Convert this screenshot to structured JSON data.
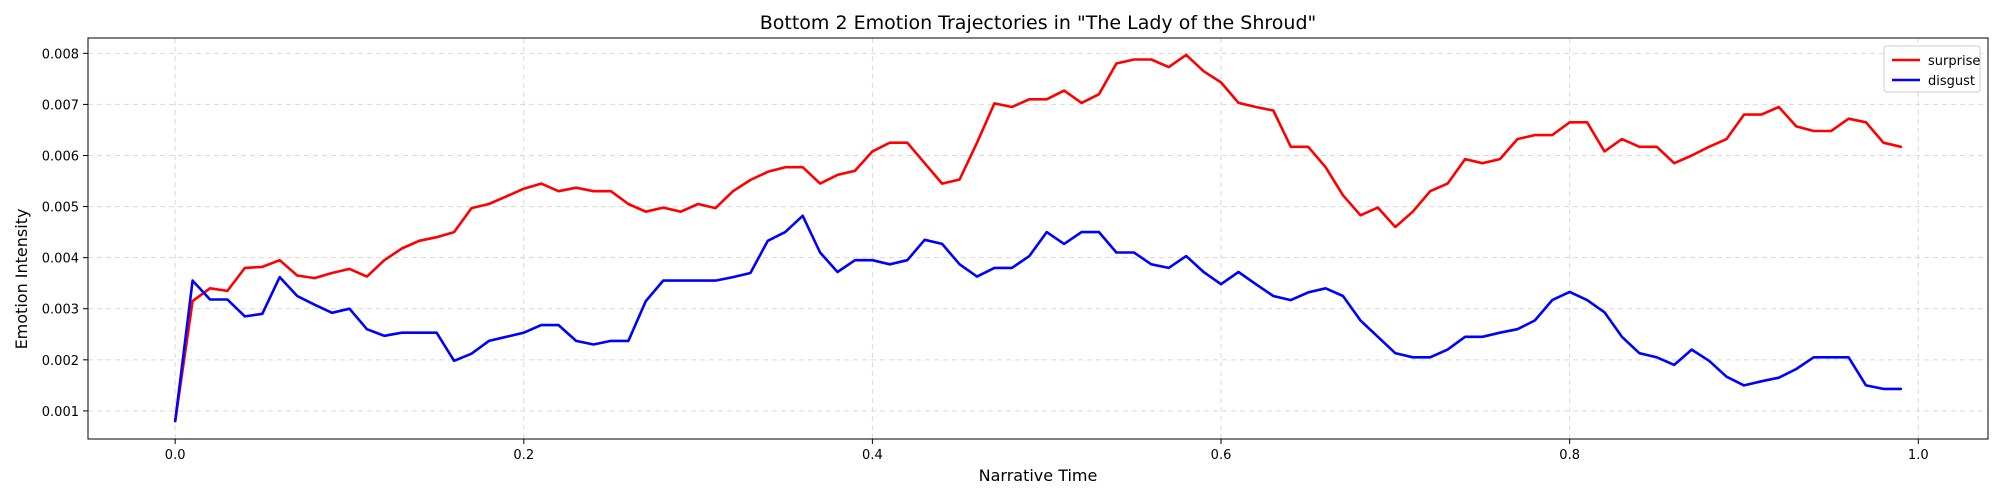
{
  "chart_data": {
    "type": "line",
    "title": "Bottom 2 Emotion Trajectories in \"The Lady of the Shroud\"",
    "xlabel": "Narrative Time",
    "ylabel": "Emotion Intensity",
    "xlim": [
      -0.05,
      1.04
    ],
    "ylim": [
      0.00045,
      0.0083
    ],
    "xticks": [
      0.0,
      0.2,
      0.4,
      0.6,
      0.8,
      1.0
    ],
    "xtick_labels": [
      "0.0",
      "0.2",
      "0.4",
      "0.6",
      "0.8",
      "1.0"
    ],
    "yticks": [
      0.001,
      0.002,
      0.003,
      0.004,
      0.005,
      0.006,
      0.007,
      0.008
    ],
    "ytick_labels": [
      "0.001",
      "0.002",
      "0.003",
      "0.004",
      "0.005",
      "0.006",
      "0.007",
      "0.008"
    ],
    "grid": true,
    "legend_position": "top-right",
    "x": [
      0.0,
      0.01,
      0.02,
      0.03,
      0.04,
      0.05,
      0.06,
      0.07,
      0.08,
      0.09,
      0.1,
      0.11,
      0.12,
      0.13,
      0.14,
      0.15,
      0.16,
      0.17,
      0.18,
      0.19,
      0.2,
      0.21,
      0.22,
      0.23,
      0.24,
      0.25,
      0.26,
      0.27,
      0.28,
      0.29,
      0.3,
      0.31,
      0.32,
      0.33,
      0.34,
      0.35,
      0.36,
      0.37,
      0.38,
      0.39,
      0.4,
      0.41,
      0.42,
      0.43,
      0.44,
      0.45,
      0.46,
      0.47,
      0.48,
      0.49,
      0.5,
      0.51,
      0.52,
      0.53,
      0.54,
      0.55,
      0.56,
      0.57,
      0.58,
      0.59,
      0.6,
      0.61,
      0.62,
      0.63,
      0.64,
      0.65,
      0.66,
      0.67,
      0.68,
      0.69,
      0.7,
      0.71,
      0.72,
      0.73,
      0.74,
      0.75,
      0.76,
      0.77,
      0.78,
      0.79,
      0.8,
      0.81,
      0.82,
      0.83,
      0.84,
      0.85,
      0.86,
      0.87,
      0.88,
      0.89,
      0.9,
      0.91,
      0.92,
      0.93,
      0.94,
      0.95,
      0.96,
      0.97,
      0.98,
      0.99
    ],
    "series": [
      {
        "name": "surprise",
        "color": "#ff0000",
        "values": [
          0.0008,
          0.00315,
          0.0034,
          0.00335,
          0.0038,
          0.00382,
          0.00395,
          0.00365,
          0.0036,
          0.0037,
          0.00378,
          0.00363,
          0.00395,
          0.00418,
          0.00433,
          0.0044,
          0.0045,
          0.00497,
          0.00505,
          0.0052,
          0.00535,
          0.00545,
          0.0053,
          0.00537,
          0.0053,
          0.0053,
          0.00505,
          0.0049,
          0.00498,
          0.0049,
          0.00505,
          0.00497,
          0.0053,
          0.00552,
          0.00568,
          0.00577,
          0.00577,
          0.00545,
          0.00562,
          0.0057,
          0.00608,
          0.00625,
          0.00625,
          0.00585,
          0.00545,
          0.00553,
          0.00625,
          0.00702,
          0.00695,
          0.0071,
          0.0071,
          0.00727,
          0.00703,
          0.0072,
          0.0078,
          0.00788,
          0.00788,
          0.00773,
          0.00797,
          0.00765,
          0.00743,
          0.00703,
          0.00695,
          0.00688,
          0.00617,
          0.00617,
          0.00577,
          0.00522,
          0.00483,
          0.00498,
          0.0046,
          0.0049,
          0.0053,
          0.00545,
          0.00593,
          0.00585,
          0.00593,
          0.00632,
          0.0064,
          0.0064,
          0.00665,
          0.00665,
          0.00608,
          0.00632,
          0.00617,
          0.00617,
          0.00585,
          0.006,
          0.00617,
          0.00632,
          0.0068,
          0.0068,
          0.00695,
          0.00657,
          0.00648,
          0.00648,
          0.00672,
          0.00665,
          0.00625,
          0.00617
        ]
      },
      {
        "name": "disgust",
        "color": "#0000ff",
        "values": [
          0.0008,
          0.00355,
          0.00318,
          0.00318,
          0.00285,
          0.0029,
          0.00362,
          0.00325,
          0.00308,
          0.00292,
          0.003,
          0.0026,
          0.00247,
          0.00253,
          0.00253,
          0.00253,
          0.00198,
          0.00212,
          0.00237,
          0.00245,
          0.00253,
          0.00268,
          0.00268,
          0.00237,
          0.0023,
          0.00237,
          0.00237,
          0.00315,
          0.00355,
          0.00355,
          0.00355,
          0.00355,
          0.00362,
          0.0037,
          0.00433,
          0.0045,
          0.00482,
          0.0041,
          0.00372,
          0.00395,
          0.00395,
          0.00387,
          0.00395,
          0.00435,
          0.00427,
          0.00387,
          0.00363,
          0.0038,
          0.0038,
          0.00403,
          0.0045,
          0.00427,
          0.0045,
          0.0045,
          0.0041,
          0.0041,
          0.00387,
          0.0038,
          0.00403,
          0.00372,
          0.00348,
          0.00372,
          0.00348,
          0.00325,
          0.00317,
          0.00332,
          0.0034,
          0.00325,
          0.00277,
          0.00245,
          0.00213,
          0.00205,
          0.00205,
          0.0022,
          0.00245,
          0.00245,
          0.00253,
          0.0026,
          0.00277,
          0.00317,
          0.00333,
          0.00317,
          0.00293,
          0.00245,
          0.00213,
          0.00205,
          0.0019,
          0.0022,
          0.00198,
          0.00167,
          0.0015,
          0.00158,
          0.00165,
          0.00182,
          0.00205,
          0.00205,
          0.00205,
          0.0015,
          0.00143,
          0.00143
        ]
      }
    ]
  }
}
